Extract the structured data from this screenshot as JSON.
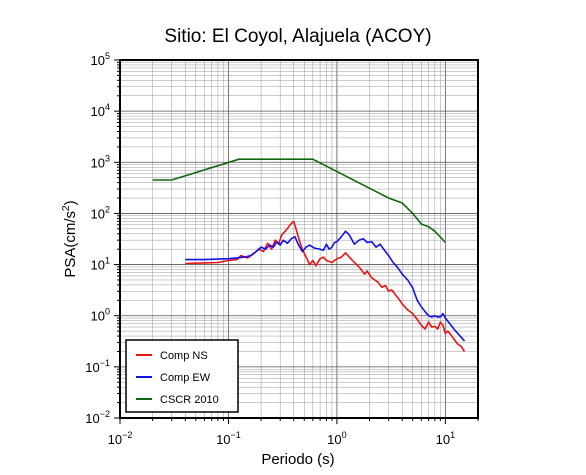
{
  "chart_data": {
    "type": "line",
    "title": "Sitio: El Coyol, Alajuela (ACOY)",
    "xlabel": "Periodo (s)",
    "ylabel": {
      "base": "PSA(cm/s",
      "sup": "2",
      "tail": ")"
    },
    "x_scale": "log",
    "y_scale": "log",
    "xlim": [
      0.01,
      20
    ],
    "ylim": [
      0.01,
      100000
    ],
    "grid": true,
    "legend_position": "bottom-left",
    "x_ticks": [
      {
        "value": 0.01,
        "base": "10",
        "exp": "−2"
      },
      {
        "value": 0.1,
        "base": "10",
        "exp": "−1"
      },
      {
        "value": 1,
        "base": "10",
        "exp": "0"
      },
      {
        "value": 10,
        "base": "10",
        "exp": "1"
      }
    ],
    "y_ticks": [
      {
        "value": 0.01,
        "base": "10",
        "exp": "−2"
      },
      {
        "value": 0.1,
        "base": "10",
        "exp": "−1"
      },
      {
        "value": 1,
        "base": "10",
        "exp": "0"
      },
      {
        "value": 10,
        "base": "10",
        "exp": "1"
      },
      {
        "value": 100,
        "base": "10",
        "exp": "2"
      },
      {
        "value": 1000,
        "base": "10",
        "exp": "3"
      },
      {
        "value": 10000,
        "base": "10",
        "exp": "4"
      },
      {
        "value": 100000,
        "base": "10",
        "exp": "5"
      }
    ],
    "series": [
      {
        "name": "Comp NS",
        "color": "#ee1111",
        "points": [
          [
            0.04,
            10.5
          ],
          [
            0.06,
            10.8
          ],
          [
            0.08,
            11
          ],
          [
            0.1,
            12
          ],
          [
            0.12,
            12.5
          ],
          [
            0.13,
            15
          ],
          [
            0.15,
            13.5
          ],
          [
            0.17,
            16
          ],
          [
            0.19,
            20
          ],
          [
            0.21,
            18
          ],
          [
            0.23,
            26
          ],
          [
            0.25,
            20
          ],
          [
            0.27,
            30
          ],
          [
            0.29,
            25
          ],
          [
            0.31,
            38
          ],
          [
            0.34,
            47
          ],
          [
            0.37,
            60
          ],
          [
            0.4,
            70
          ],
          [
            0.42,
            50
          ],
          [
            0.45,
            30
          ],
          [
            0.48,
            20
          ],
          [
            0.52,
            14
          ],
          [
            0.56,
            10
          ],
          [
            0.6,
            12
          ],
          [
            0.64,
            9.5
          ],
          [
            0.7,
            13
          ],
          [
            0.75,
            14
          ],
          [
            0.8,
            12
          ],
          [
            0.9,
            11
          ],
          [
            1.0,
            13
          ],
          [
            1.1,
            14
          ],
          [
            1.2,
            17
          ],
          [
            1.3,
            14
          ],
          [
            1.45,
            11
          ],
          [
            1.6,
            9
          ],
          [
            1.8,
            6.5
          ],
          [
            1.9,
            7.5
          ],
          [
            2.1,
            5.5
          ],
          [
            2.4,
            4.5
          ],
          [
            2.6,
            3.6
          ],
          [
            2.8,
            3.9
          ],
          [
            3.0,
            3.0
          ],
          [
            3.2,
            3.2
          ],
          [
            3.5,
            2.5
          ],
          [
            3.8,
            2.0
          ],
          [
            4.0,
            1.7
          ],
          [
            4.5,
            1.3
          ],
          [
            5.0,
            1.1
          ],
          [
            5.5,
            0.85
          ],
          [
            6.0,
            0.65
          ],
          [
            6.5,
            0.55
          ],
          [
            7.0,
            0.75
          ],
          [
            7.5,
            0.6
          ],
          [
            8.0,
            0.62
          ],
          [
            8.5,
            0.55
          ],
          [
            9.0,
            0.75
          ],
          [
            9.5,
            0.65
          ],
          [
            10.0,
            0.45
          ],
          [
            10.5,
            0.5
          ],
          [
            11.0,
            0.45
          ],
          [
            12.0,
            0.35
          ],
          [
            13.0,
            0.28
          ],
          [
            14.0,
            0.25
          ],
          [
            15.0,
            0.2
          ]
        ]
      },
      {
        "name": "Comp EW",
        "color": "#1111ee",
        "points": [
          [
            0.04,
            12.5
          ],
          [
            0.06,
            12.5
          ],
          [
            0.08,
            12.8
          ],
          [
            0.1,
            13
          ],
          [
            0.12,
            13.5
          ],
          [
            0.14,
            14
          ],
          [
            0.16,
            15
          ],
          [
            0.18,
            18
          ],
          [
            0.2,
            22
          ],
          [
            0.22,
            20
          ],
          [
            0.24,
            24
          ],
          [
            0.26,
            22
          ],
          [
            0.28,
            28
          ],
          [
            0.3,
            24
          ],
          [
            0.32,
            30
          ],
          [
            0.35,
            26
          ],
          [
            0.38,
            32
          ],
          [
            0.41,
            35
          ],
          [
            0.44,
            25
          ],
          [
            0.48,
            18
          ],
          [
            0.52,
            22
          ],
          [
            0.56,
            24
          ],
          [
            0.62,
            21
          ],
          [
            0.7,
            20
          ],
          [
            0.75,
            19
          ],
          [
            0.8,
            25
          ],
          [
            0.85,
            20
          ],
          [
            0.9,
            22
          ],
          [
            0.95,
            27
          ],
          [
            1.0,
            28
          ],
          [
            1.1,
            35
          ],
          [
            1.2,
            45
          ],
          [
            1.3,
            38
          ],
          [
            1.45,
            25
          ],
          [
            1.6,
            30
          ],
          [
            1.75,
            32
          ],
          [
            1.9,
            27
          ],
          [
            2.1,
            28
          ],
          [
            2.3,
            22
          ],
          [
            2.5,
            25
          ],
          [
            2.8,
            18
          ],
          [
            3.0,
            15
          ],
          [
            3.3,
            11
          ],
          [
            3.6,
            9
          ],
          [
            4.0,
            6.5
          ],
          [
            4.5,
            5
          ],
          [
            5.0,
            3.5
          ],
          [
            5.5,
            2.0
          ],
          [
            6.0,
            1.5
          ],
          [
            6.5,
            1.2
          ],
          [
            7.0,
            1.0
          ],
          [
            7.5,
            0.95
          ],
          [
            8.0,
            1.0
          ],
          [
            8.5,
            0.95
          ],
          [
            9.0,
            0.95
          ],
          [
            9.5,
            1.1
          ],
          [
            10.0,
            0.9
          ],
          [
            11.0,
            0.7
          ],
          [
            12.0,
            0.55
          ],
          [
            13.0,
            0.45
          ],
          [
            14.0,
            0.38
          ],
          [
            15.0,
            0.32
          ]
        ]
      },
      {
        "name": "CSCR 2010",
        "color": "#116611",
        "points": [
          [
            0.02,
            450
          ],
          [
            0.03,
            450
          ],
          [
            0.125,
            1150
          ],
          [
            0.6,
            1150
          ],
          [
            3.0,
            200
          ],
          [
            4.0,
            160
          ],
          [
            5.0,
            100
          ],
          [
            6.0,
            62
          ],
          [
            7.0,
            55
          ],
          [
            8.0,
            45
          ],
          [
            10.0,
            27
          ]
        ]
      }
    ]
  }
}
